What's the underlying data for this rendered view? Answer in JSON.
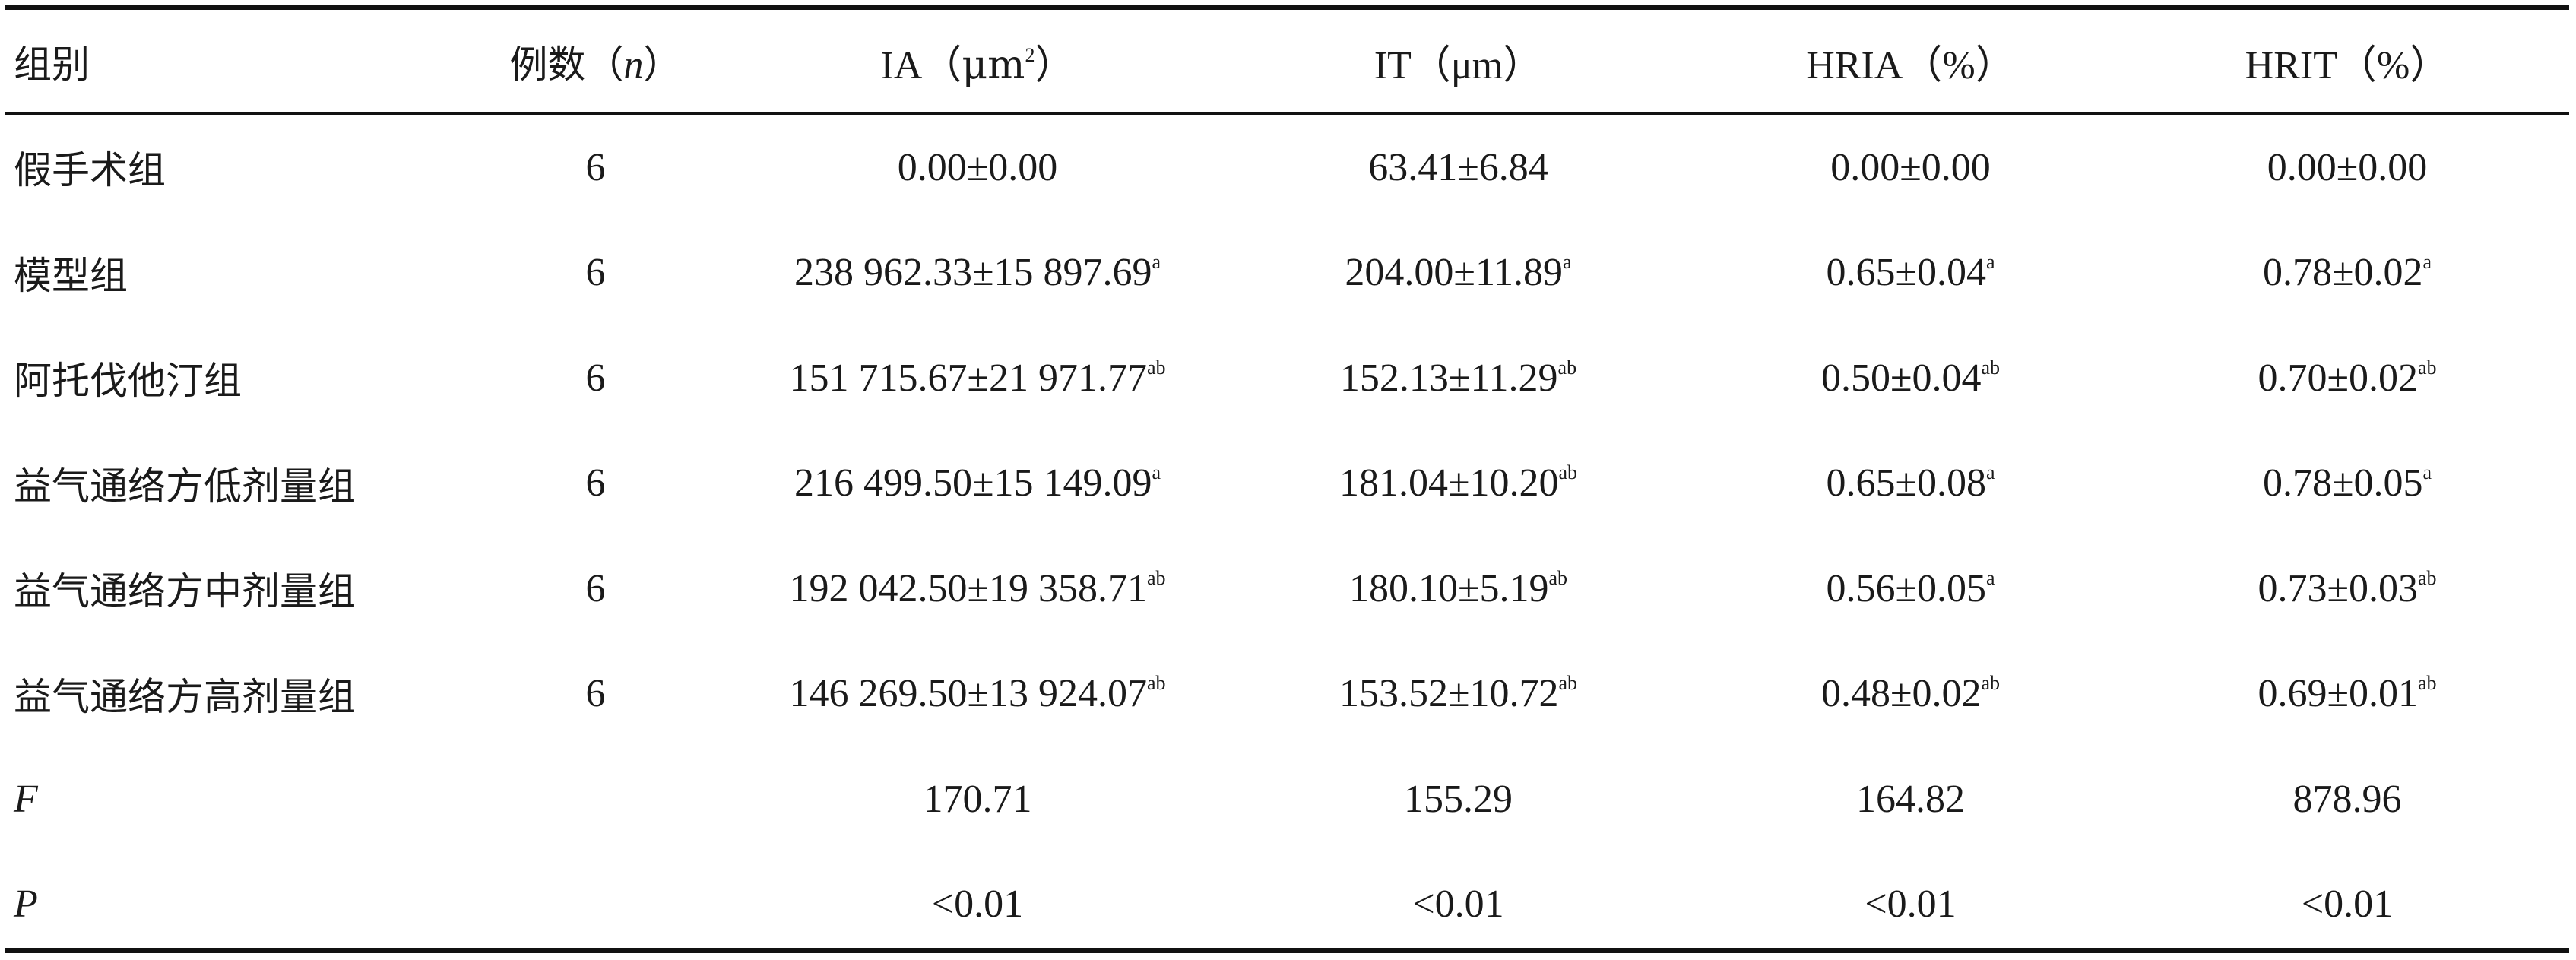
{
  "table": {
    "headers": {
      "group": "组别",
      "n_prefix": "例数（",
      "n_var": "n",
      "n_suffix": "）",
      "ia_prefix": "IA（",
      "ia_unit": "μm",
      "ia_exp": "2",
      "ia_suffix": "）",
      "it": "IT（μm）",
      "hria": "HRIA（%）",
      "hrit": "HRIT（%）"
    },
    "rows": [
      {
        "group": "假手术组",
        "n": "6",
        "ia": "0.00±0.00",
        "ia_sup": "",
        "it": "63.41±6.84",
        "it_sup": "",
        "hria": "0.00±0.00",
        "hria_sup": "",
        "hrit": "0.00±0.00",
        "hrit_sup": ""
      },
      {
        "group": "模型组",
        "n": "6",
        "ia": "238 962.33±15 897.69",
        "ia_sup": "a",
        "it": "204.00±11.89",
        "it_sup": "a",
        "hria": "0.65±0.04",
        "hria_sup": "a",
        "hrit": "0.78±0.02",
        "hrit_sup": "a"
      },
      {
        "group": "阿托伐他汀组",
        "n": "6",
        "ia": "151 715.67±21 971.77",
        "ia_sup": "ab",
        "it": "152.13±11.29",
        "it_sup": "ab",
        "hria": "0.50±0.04",
        "hria_sup": "ab",
        "hrit": "0.70±0.02",
        "hrit_sup": "ab"
      },
      {
        "group": "益气通络方低剂量组",
        "n": "6",
        "ia": "216 499.50±15 149.09",
        "ia_sup": "a",
        "it": "181.04±10.20",
        "it_sup": "ab",
        "hria": "0.65±0.08",
        "hria_sup": "a",
        "hrit": "0.78±0.05",
        "hrit_sup": "a"
      },
      {
        "group": "益气通络方中剂量组",
        "n": "6",
        "ia": "192 042.50±19 358.71",
        "ia_sup": "ab",
        "it": "180.10±5.19",
        "it_sup": "ab",
        "hria": "0.56±0.05",
        "hria_sup": "a",
        "hrit": "0.73±0.03",
        "hrit_sup": "ab"
      },
      {
        "group": "益气通络方高剂量组",
        "n": "6",
        "ia": "146 269.50±13 924.07",
        "ia_sup": "ab",
        "it": "153.52±10.72",
        "it_sup": "ab",
        "hria": "0.48±0.02",
        "hria_sup": "ab",
        "hrit": "0.69±0.01",
        "hrit_sup": "ab"
      }
    ],
    "stats": [
      {
        "label": "F",
        "ia": "170.71",
        "it": "155.29",
        "hria": "164.82",
        "hrit": "878.96"
      },
      {
        "label": "P",
        "ia": "<0.01",
        "it": "<0.01",
        "hria": "<0.01",
        "hrit": "<0.01"
      }
    ]
  }
}
